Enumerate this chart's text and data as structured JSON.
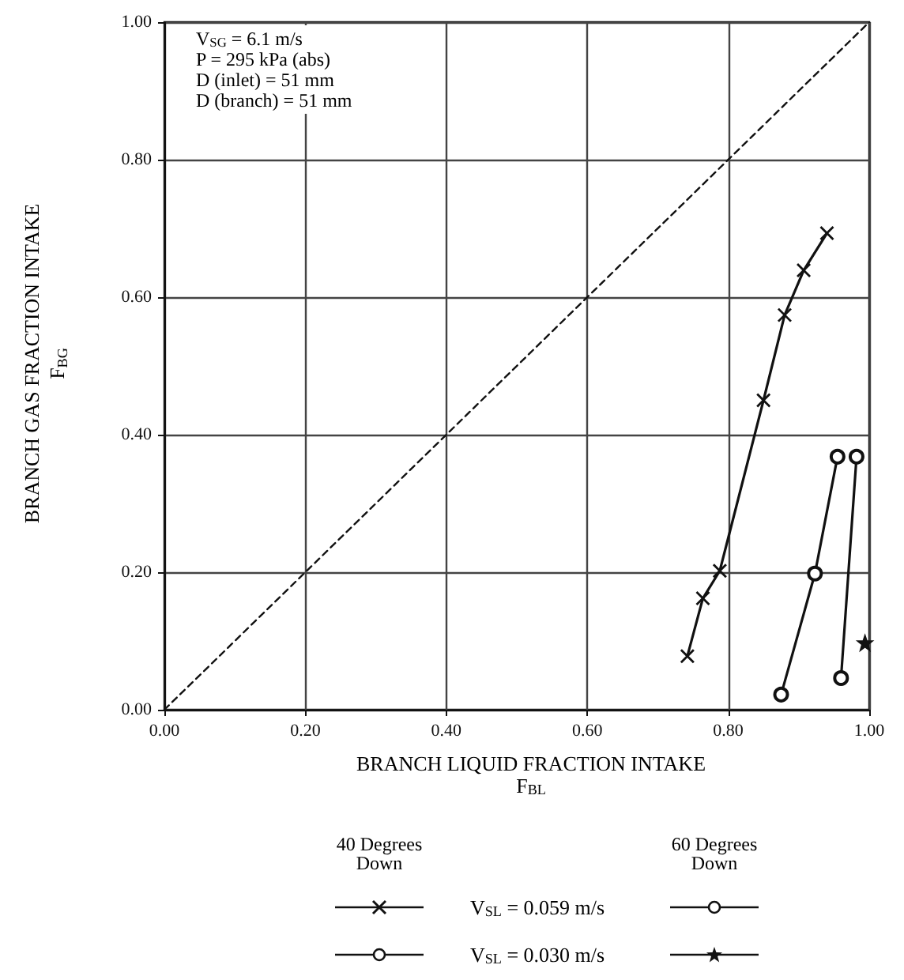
{
  "chart_data": {
    "type": "line",
    "xlabel": "BRANCH LIQUID FRACTION INTAKE\nF$_{BL}$",
    "ylabel": "BRANCH GAS FRACTION INTAKE\nF$_{BG}$",
    "xlim": [
      0,
      1
    ],
    "ylim": [
      0,
      1
    ],
    "xticks": [
      {
        "value": 0,
        "label": "0.00"
      },
      {
        "value": 0.2,
        "label": "0.20"
      },
      {
        "value": 0.4,
        "label": "0.40"
      },
      {
        "value": 0.6,
        "label": "0.60"
      },
      {
        "value": 0.8,
        "label": "0.80"
      },
      {
        "value": 1,
        "label": "1.00"
      }
    ],
    "yticks": [
      {
        "value": 0,
        "label": "0.00"
      },
      {
        "value": 0.2,
        "label": "0.20"
      },
      {
        "value": 0.4,
        "label": "0.40"
      },
      {
        "value": 0.6,
        "label": "0.60"
      },
      {
        "value": 0.8,
        "label": "0.80"
      },
      {
        "value": 1,
        "label": "1.00"
      }
    ],
    "grid": true,
    "annotations": [
      "V$_{SG}$ = 6.1 m/s\nP = 295 kPa (abs)\nD (inlet) = 51 mm\nD (branch) = 51 mm",
      "40 Degrees\nDown",
      "60 Degrees\nDown",
      "V$_{SL}$ = 0.059 m/s",
      "V$_{SL}$ = 0.030 m/s"
    ],
    "series": [
      {
        "color": "#111111",
        "marker": "cross",
        "x": [
          0.742,
          0.764,
          0.788,
          0.85,
          0.88,
          0.907,
          0.94
        ],
        "values": [
          0.078,
          0.162,
          0.202,
          0.45,
          0.574,
          0.639,
          0.693
        ]
      },
      {
        "color": "#111111",
        "marker": "circle",
        "x": [
          0.875,
          0.923,
          0.955
        ],
        "values": [
          0.022,
          0.198,
          0.368
        ]
      },
      {
        "color": "#111111",
        "marker": "circle",
        "x": [
          0.96,
          0.982
        ],
        "values": [
          0.046,
          0.368
        ]
      },
      {
        "color": "#111111",
        "marker": "star",
        "x": [
          0.994
        ],
        "values": [
          0.097
        ]
      },
      {
        "color": "#111111",
        "marker": "none",
        "line_style": "dashed",
        "x": [
          0,
          1
        ],
        "values": [
          0,
          1
        ]
      }
    ]
  }
}
